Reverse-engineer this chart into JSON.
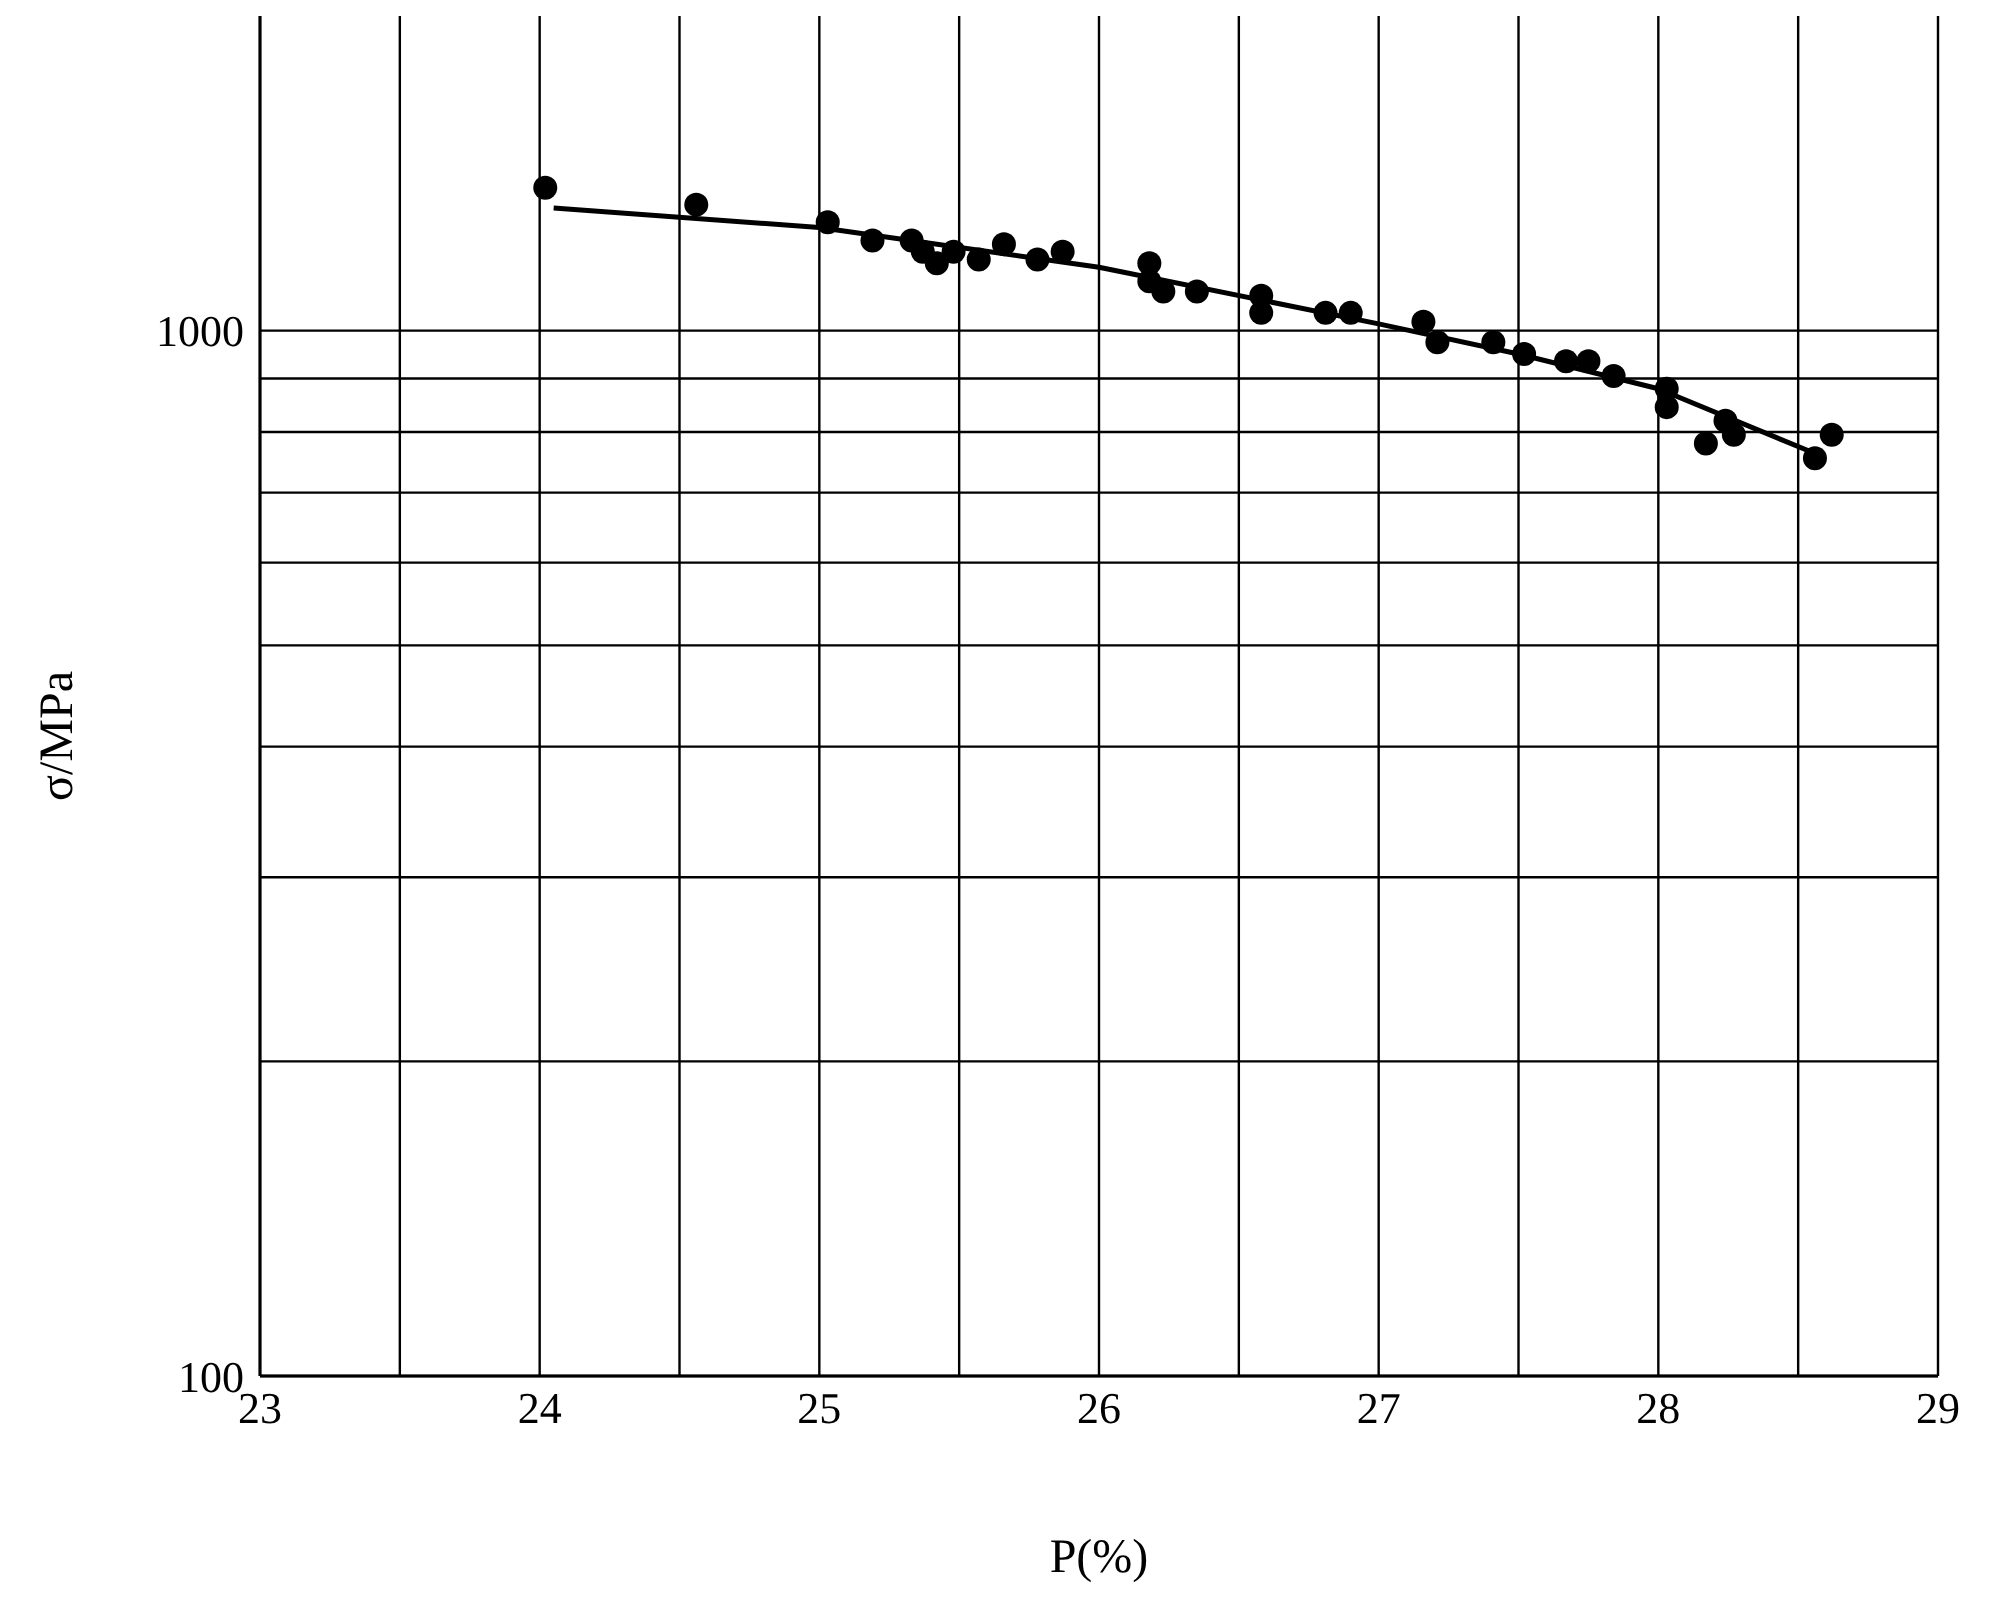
{
  "chart_data": {
    "type": "scatter",
    "xlabel": "P(%)",
    "ylabel": "σ/MPa",
    "log": "y",
    "grid": true,
    "xlim": [
      23,
      29
    ],
    "xticks": [
      23,
      {
        "value": 23.5,
        "label": null
      },
      24,
      {
        "value": 24.5,
        "label": null
      },
      25,
      {
        "value": 25.5,
        "label": null
      },
      26,
      {
        "value": 26.5,
        "label": null
      },
      27,
      {
        "value": 27.5,
        "label": null
      },
      28,
      {
        "value": 28.5,
        "label": null
      },
      29
    ],
    "ylim": [
      100,
      2000
    ],
    "yticks": [
      100,
      {
        "value": 200,
        "label": null
      },
      {
        "value": 300,
        "label": null
      },
      {
        "value": 400,
        "label": null
      },
      {
        "value": 500,
        "label": null
      },
      {
        "value": 600,
        "label": null
      },
      {
        "value": 700,
        "label": null
      },
      {
        "value": 800,
        "label": null
      },
      {
        "value": 900,
        "label": null
      },
      1000
    ],
    "series": [
      {
        "marker": "circle",
        "color": "#000000",
        "x": [
          24.02,
          24.56,
          25.03,
          25.19,
          25.33,
          25.37,
          25.42,
          25.48,
          25.57,
          25.66,
          25.78,
          25.87,
          26.18,
          26.18,
          26.23,
          26.35,
          26.58,
          26.58,
          26.81,
          26.9,
          27.16,
          27.21,
          27.41,
          27.52,
          27.67,
          27.75,
          27.84,
          28.03,
          28.03,
          28.17,
          28.24,
          28.27,
          28.56,
          28.62
        ],
        "values": [
          1370,
          1320,
          1270,
          1220,
          1220,
          1190,
          1160,
          1190,
          1170,
          1210,
          1170,
          1190,
          1160,
          1115,
          1090,
          1090,
          1080,
          1040,
          1040,
          1040,
          1020,
          975,
          975,
          950,
          935,
          935,
          905,
          880,
          845,
          780,
          820,
          795,
          755,
          795
        ]
      },
      {
        "type": "line",
        "color": "#000000",
        "x": [
          24.05,
          25,
          26,
          27,
          27.5,
          28,
          28.55
        ],
        "values": [
          1310,
          1255,
          1150,
          1015,
          950,
          880,
          765
        ]
      }
    ]
  }
}
